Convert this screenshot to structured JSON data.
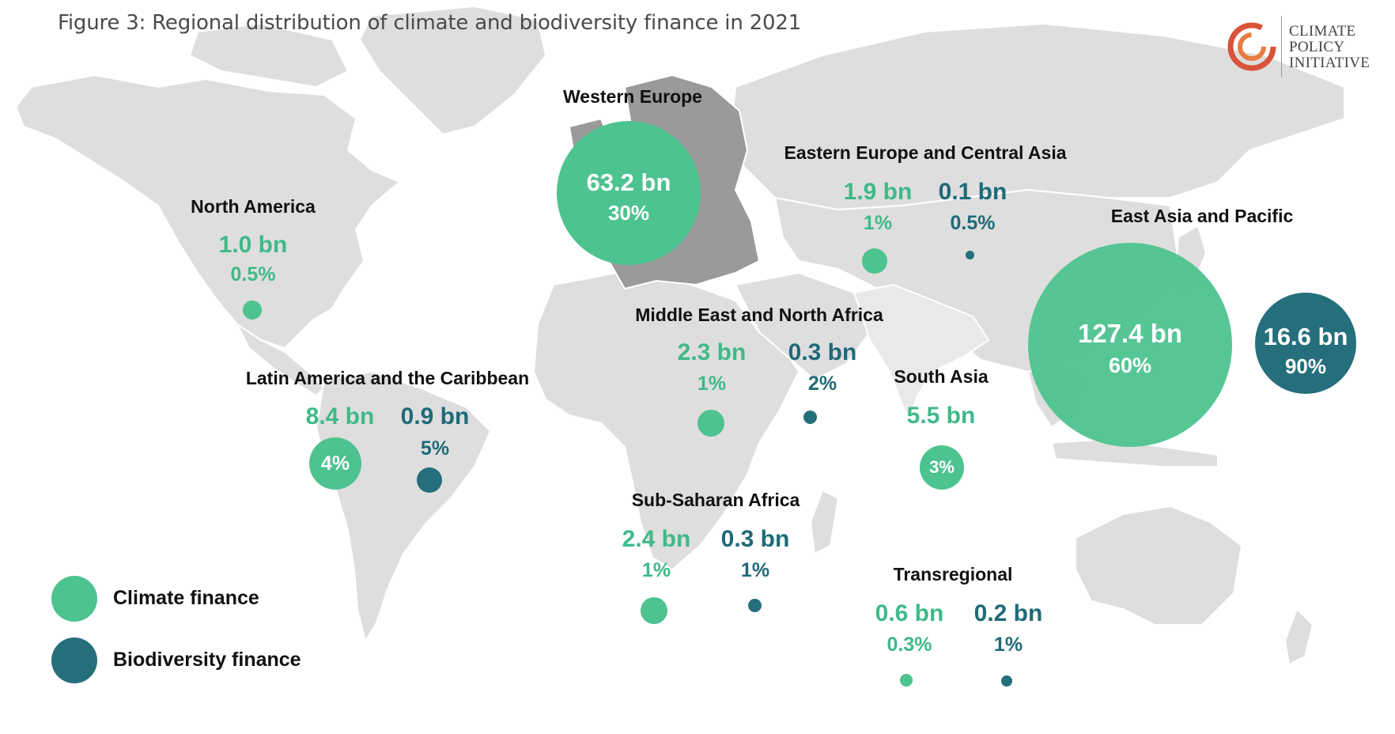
{
  "title": "Figure 3: Regional distribution of climate and biodiversity finance in 2021",
  "logo": {
    "line1": "CLIMATE",
    "line2": "POLICY",
    "line3": "INITIATIVE",
    "mark": "cpi-swirl-logo"
  },
  "colors": {
    "climate": "#4dc38f",
    "biodiversity": "#256f7c",
    "land": "#dedede",
    "land_highlight": "#9a9a9a"
  },
  "legend": [
    {
      "label": "Climate finance",
      "color": "#4dc38f"
    },
    {
      "label": "Biodiversity finance",
      "color": "#256f7c"
    }
  ],
  "regions": {
    "north_america": {
      "name": "North America",
      "climate_amount": "1.0 bn",
      "climate_share": "0.5%"
    },
    "latin_america": {
      "name": "Latin America and the Caribbean",
      "climate_amount": "8.4 bn",
      "climate_share": "4%",
      "bio_amount": "0.9 bn",
      "bio_share": "5%"
    },
    "western_europe": {
      "name": "Western Europe",
      "climate_amount": "63.2 bn",
      "climate_share": "30%"
    },
    "eastern_europe": {
      "name": "Eastern Europe and Central Asia",
      "climate_amount": "1.9 bn",
      "climate_share": "1%",
      "bio_amount": "0.1 bn",
      "bio_share": "0.5%"
    },
    "mena": {
      "name": "Middle East and North Africa",
      "climate_amount": "2.3 bn",
      "climate_share": "1%",
      "bio_amount": "0.3 bn",
      "bio_share": "2%"
    },
    "south_asia": {
      "name": "South Asia",
      "climate_amount": "5.5 bn",
      "climate_share": "3%"
    },
    "east_asia": {
      "name": "East Asia and Pacific",
      "climate_amount": "127.4 bn",
      "climate_share": "60%",
      "bio_amount": "16.6 bn",
      "bio_share": "90%"
    },
    "ssa": {
      "name": "Sub-Saharan Africa",
      "climate_amount": "2.4 bn",
      "climate_share": "1%",
      "bio_amount": "0.3 bn",
      "bio_share": "1%"
    },
    "transregional": {
      "name": "Transregional",
      "climate_amount": "0.6 bn",
      "climate_share": "0.3%",
      "bio_amount": "0.2 bn",
      "bio_share": "1%"
    }
  }
}
